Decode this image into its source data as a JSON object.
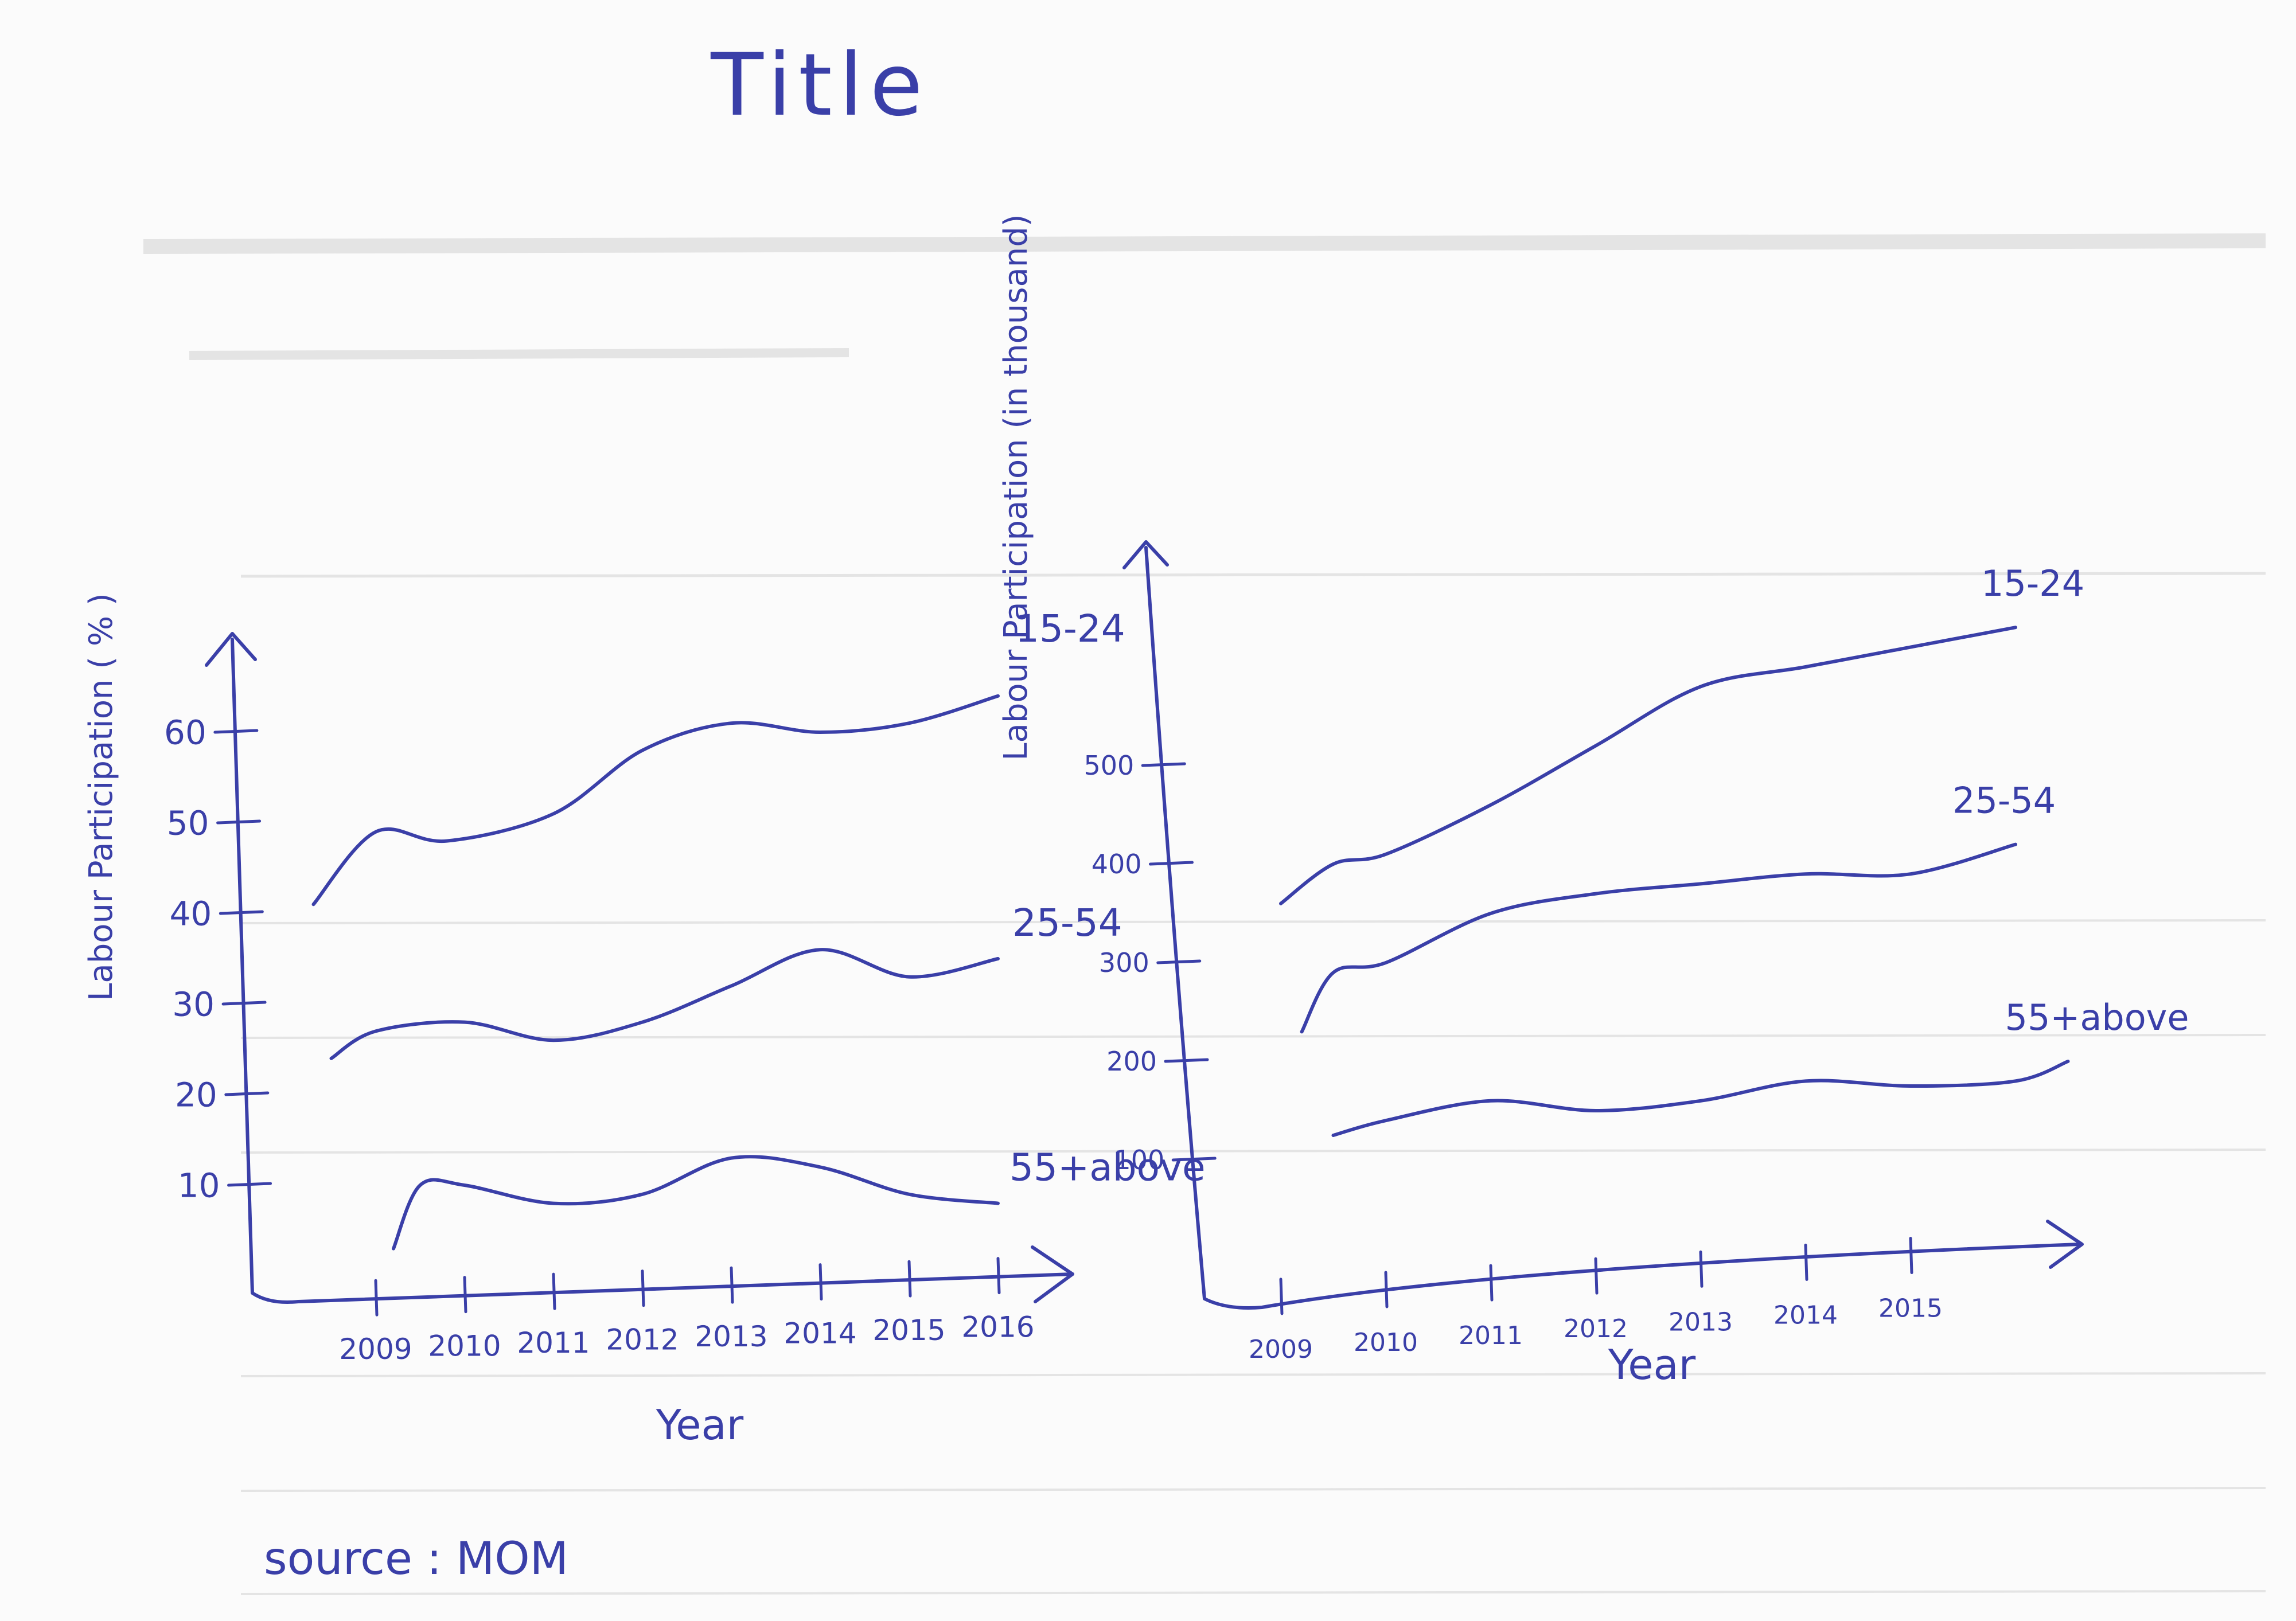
{
  "title": "Title",
  "source": "source : MOM",
  "colors": {
    "ink": "#3a3fa8",
    "paper": "#fbfbfb"
  },
  "chart_data": [
    {
      "type": "line",
      "title": "",
      "xlabel": "Year",
      "ylabel": "Labour Participation ( % )",
      "categories": [
        "2009",
        "2010",
        "2011",
        "2012",
        "2013",
        "2014",
        "2015",
        "2016"
      ],
      "yticks": [
        10,
        20,
        30,
        40,
        50,
        60
      ],
      "ylim": [
        0,
        70
      ],
      "grid": false,
      "series": [
        {
          "name": "15-24",
          "x": [
            2008.3,
            2009,
            2009.8,
            2011,
            2012,
            2013,
            2014,
            2015,
            2016
          ],
          "values": [
            41,
            49,
            48,
            51,
            58,
            61,
            60,
            61,
            64
          ]
        },
        {
          "name": "25-54",
          "x": [
            2008.5,
            2009,
            2010,
            2011,
            2012,
            2013,
            2014,
            2015,
            2016
          ],
          "values": [
            24,
            27,
            28,
            26,
            28,
            32,
            36,
            33,
            35
          ]
        },
        {
          "name": "55+above",
          "x": [
            2009.2,
            2009.5,
            2010,
            2011,
            2012,
            2013,
            2014,
            2015,
            2016
          ],
          "values": [
            3,
            10,
            10,
            8,
            9,
            13,
            12,
            9,
            8
          ]
        }
      ]
    },
    {
      "type": "line",
      "title": "",
      "xlabel": "Year",
      "ylabel": "Labour Participation (in thousand)",
      "categories": [
        "2009",
        "2010",
        "2011",
        "2012",
        "2013",
        "2014",
        "2015"
      ],
      "yticks": [
        100,
        200,
        300,
        400,
        500
      ],
      "ylim": [
        0,
        600
      ],
      "grid": false,
      "series": [
        {
          "name": "15-24",
          "x": [
            2009,
            2009.5,
            2010,
            2011,
            2012,
            2013,
            2014,
            2015,
            2016
          ],
          "values": [
            360,
            400,
            410,
            460,
            520,
            580,
            600,
            620,
            640
          ]
        },
        {
          "name": "25-54",
          "x": [
            2009.2,
            2009.5,
            2010,
            2011,
            2012,
            2013,
            2014,
            2015,
            2016
          ],
          "values": [
            230,
            290,
            300,
            350,
            370,
            380,
            390,
            390,
            420
          ]
        },
        {
          "name": "55+above",
          "x": [
            2009.5,
            2010,
            2011,
            2012,
            2013,
            2014,
            2015,
            2016,
            2016.5
          ],
          "values": [
            125,
            140,
            160,
            150,
            160,
            180,
            175,
            180,
            200
          ]
        }
      ]
    }
  ]
}
